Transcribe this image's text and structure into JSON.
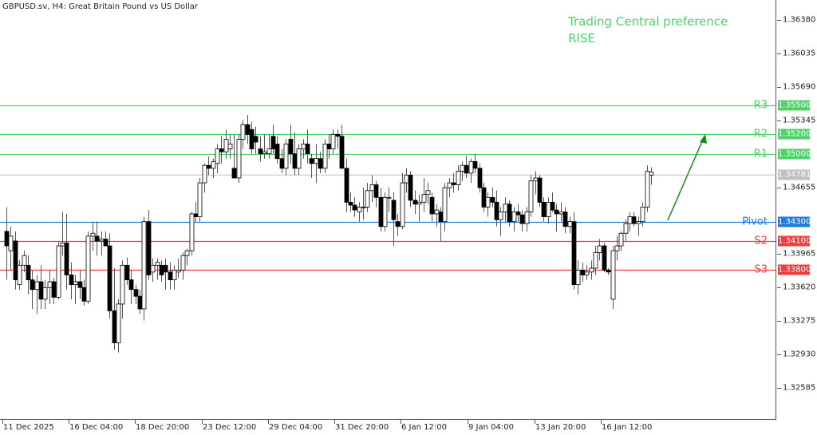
{
  "header": {
    "symbol_title": "GBPUSD.sv, H4:  Great Britain Pound vs US Dollar"
  },
  "annotation": {
    "line1": "Trading Central preference",
    "line2": "RISE",
    "color": "#4cd36a",
    "arrow_color": "#1a8a1a"
  },
  "colors": {
    "resistance": "#4cd36a",
    "pivot": "#1e7be0",
    "support": "#f03c3c",
    "current": "#c0c0c0",
    "candle_outline": "#000000"
  },
  "chart_data": {
    "type": "candlestick",
    "title": "GBPUSD.sv, H4: Great Britain Pound vs US Dollar",
    "xlabel": "",
    "ylabel": "",
    "ylim": [
      1.3225,
      1.3672
    ],
    "grid": false,
    "y_ticks": [
      "1.36380",
      "1.36035",
      "1.35690",
      "1.35345",
      "1.34655",
      "1.33965",
      "1.33620",
      "1.33275",
      "1.32930",
      "1.32585"
    ],
    "x_ticks": [
      "11 Dec 2025",
      "16 Dec 04:00",
      "18 Dec 20:00",
      "23 Dec 12:00",
      "29 Dec 04:00",
      "31 Dec 20:00",
      "6 Jan 12:00",
      "9 Jan 04:00",
      "13 Jan 20:00",
      "16 Jan 12:00"
    ],
    "levels": [
      {
        "name": "R3",
        "value": 1.355,
        "label": "1.35500",
        "type": "resistance"
      },
      {
        "name": "R2",
        "value": 1.352,
        "label": "1.35200",
        "type": "resistance"
      },
      {
        "name": "R1",
        "value": 1.35,
        "label": "1.35000",
        "type": "resistance"
      },
      {
        "name": "Pivot",
        "value": 1.343,
        "label": "1.34300",
        "type": "pivot"
      },
      {
        "name": "S2",
        "value": 1.341,
        "label": "1.34100",
        "type": "support"
      },
      {
        "name": "S3",
        "value": 1.338,
        "label": "1.33800",
        "type": "support"
      }
    ],
    "current_price": {
      "value": 1.34781,
      "label": "1.34781"
    },
    "candles_ohlc_approx": [
      [
        1.342,
        1.3445,
        1.337,
        1.3405
      ],
      [
        1.34,
        1.3425,
        1.338,
        1.3415
      ],
      [
        1.341,
        1.342,
        1.336,
        1.337
      ],
      [
        1.3365,
        1.339,
        1.336,
        1.3385
      ],
      [
        1.3385,
        1.34,
        1.3378,
        1.3395
      ],
      [
        1.3385,
        1.3395,
        1.3355,
        1.337
      ],
      [
        1.337,
        1.338,
        1.334,
        1.336
      ],
      [
        1.336,
        1.3375,
        1.3335,
        1.3368
      ],
      [
        1.3368,
        1.3385,
        1.334,
        1.335
      ],
      [
        1.335,
        1.337,
        1.334,
        1.3362
      ],
      [
        1.3362,
        1.338,
        1.3345,
        1.3368
      ],
      [
        1.3368,
        1.3372,
        1.3345,
        1.3352
      ],
      [
        1.3352,
        1.341,
        1.335,
        1.3405
      ],
      [
        1.3405,
        1.344,
        1.3395,
        1.3408
      ],
      [
        1.3408,
        1.3438,
        1.336,
        1.3375
      ],
      [
        1.3375,
        1.3388,
        1.335,
        1.3365
      ],
      [
        1.3365,
        1.3375,
        1.3345,
        1.3368
      ],
      [
        1.3368,
        1.338,
        1.335,
        1.3362
      ],
      [
        1.3362,
        1.337,
        1.3343,
        1.3348
      ],
      [
        1.3348,
        1.342,
        1.3345,
        1.3415
      ],
      [
        1.3415,
        1.343,
        1.34,
        1.3418
      ],
      [
        1.3415,
        1.343,
        1.3395,
        1.341
      ],
      [
        1.341,
        1.342,
        1.3395,
        1.3412
      ],
      [
        1.3412,
        1.342,
        1.3405,
        1.3405
      ],
      [
        1.3405,
        1.3418,
        1.333,
        1.3338
      ],
      [
        1.3338,
        1.3382,
        1.3298,
        1.3305
      ],
      [
        1.3305,
        1.335,
        1.3295,
        1.3345
      ],
      [
        1.3345,
        1.339,
        1.333,
        1.3385
      ],
      [
        1.3385,
        1.3393,
        1.3365,
        1.337
      ],
      [
        1.337,
        1.338,
        1.3345,
        1.336
      ],
      [
        1.336,
        1.3365,
        1.3345,
        1.3353
      ],
      [
        1.3353,
        1.336,
        1.3335,
        1.334
      ],
      [
        1.334,
        1.3435,
        1.3328,
        1.343
      ],
      [
        1.343,
        1.3442,
        1.337,
        1.3375
      ],
      [
        1.3378,
        1.3392,
        1.3368,
        1.3385
      ],
      [
        1.3385,
        1.3392,
        1.337,
        1.3388
      ],
      [
        1.3385,
        1.339,
        1.3368,
        1.3375
      ],
      [
        1.3385,
        1.3392,
        1.336,
        1.3378
      ],
      [
        1.3378,
        1.3388,
        1.336,
        1.337
      ],
      [
        1.337,
        1.3385,
        1.336,
        1.338
      ],
      [
        1.3378,
        1.3392,
        1.3372,
        1.338
      ],
      [
        1.338,
        1.3398,
        1.337,
        1.3395
      ],
      [
        1.3395,
        1.3402,
        1.3385,
        1.34
      ],
      [
        1.34,
        1.344,
        1.3395,
        1.3438
      ],
      [
        1.3438,
        1.345,
        1.343,
        1.3435
      ],
      [
        1.3435,
        1.3475,
        1.343,
        1.347
      ],
      [
        1.347,
        1.349,
        1.346,
        1.3488
      ],
      [
        1.3488,
        1.3497,
        1.3478,
        1.3485
      ],
      [
        1.3485,
        1.3495,
        1.3475,
        1.3492
      ],
      [
        1.349,
        1.351,
        1.348,
        1.3505
      ],
      [
        1.3505,
        1.3518,
        1.349,
        1.3502
      ],
      [
        1.3502,
        1.3525,
        1.3495,
        1.3515
      ],
      [
        1.3505,
        1.352,
        1.3495,
        1.351
      ],
      [
        1.3485,
        1.352,
        1.348,
        1.3475
      ],
      [
        1.3475,
        1.352,
        1.347,
        1.3515
      ],
      [
        1.3515,
        1.3535,
        1.3505,
        1.353
      ],
      [
        1.353,
        1.354,
        1.351,
        1.352
      ],
      [
        1.3525,
        1.3533,
        1.35,
        1.3505
      ],
      [
        1.3518,
        1.3528,
        1.35,
        1.3512
      ],
      [
        1.3505,
        1.3518,
        1.3492,
        1.35
      ],
      [
        1.35,
        1.352,
        1.3495,
        1.3502
      ],
      [
        1.35,
        1.352,
        1.3495,
        1.3505
      ],
      [
        1.3518,
        1.353,
        1.35,
        1.3505
      ],
      [
        1.351,
        1.3518,
        1.349,
        1.3495
      ],
      [
        1.3495,
        1.3505,
        1.348,
        1.3485
      ],
      [
        1.3485,
        1.3515,
        1.3478,
        1.351
      ],
      [
        1.3515,
        1.353,
        1.349,
        1.35
      ],
      [
        1.35,
        1.3522,
        1.3478,
        1.3485
      ],
      [
        1.3485,
        1.351,
        1.3478,
        1.3505
      ],
      [
        1.3505,
        1.3515,
        1.3495,
        1.351
      ],
      [
        1.351,
        1.3525,
        1.349,
        1.35
      ],
      [
        1.3495,
        1.35,
        1.3475,
        1.349
      ],
      [
        1.349,
        1.351,
        1.347,
        1.3495
      ],
      [
        1.3495,
        1.3502,
        1.348,
        1.3485
      ],
      [
        1.3485,
        1.3515,
        1.348,
        1.351
      ],
      [
        1.351,
        1.352,
        1.3495,
        1.3505
      ],
      [
        1.3505,
        1.3525,
        1.35,
        1.352
      ],
      [
        1.352,
        1.3525,
        1.3505,
        1.3518
      ],
      [
        1.3518,
        1.353,
        1.3495,
        1.3485
      ],
      [
        1.3485,
        1.3495,
        1.344,
        1.345
      ],
      [
        1.345,
        1.346,
        1.344,
        1.3447
      ],
      [
        1.3447,
        1.3455,
        1.3435,
        1.3442
      ],
      [
        1.344,
        1.345,
        1.343,
        1.3445
      ],
      [
        1.3445,
        1.3465,
        1.3432,
        1.3445
      ],
      [
        1.3445,
        1.347,
        1.344,
        1.3462
      ],
      [
        1.3462,
        1.3478,
        1.345,
        1.3468
      ],
      [
        1.3468,
        1.3472,
        1.3445,
        1.3455
      ],
      [
        1.3455,
        1.3465,
        1.342,
        1.3425
      ],
      [
        1.3425,
        1.346,
        1.342,
        1.3455
      ],
      [
        1.3455,
        1.3465,
        1.344,
        1.3455
      ],
      [
        1.3452,
        1.346,
        1.3405,
        1.3432
      ],
      [
        1.343,
        1.3438,
        1.3415,
        1.3425
      ],
      [
        1.3425,
        1.348,
        1.3422,
        1.347
      ],
      [
        1.347,
        1.3485,
        1.346,
        1.3478
      ],
      [
        1.3478,
        1.3482,
        1.3445,
        1.3452
      ],
      [
        1.3452,
        1.3462,
        1.3438,
        1.3448
      ],
      [
        1.3448,
        1.3458,
        1.343,
        1.345
      ],
      [
        1.345,
        1.3475,
        1.344,
        1.3458
      ],
      [
        1.3458,
        1.347,
        1.3448,
        1.3462
      ],
      [
        1.3455,
        1.346,
        1.343,
        1.3438
      ],
      [
        1.3438,
        1.3448,
        1.3425,
        1.3442
      ],
      [
        1.344,
        1.3445,
        1.341,
        1.343
      ],
      [
        1.343,
        1.347,
        1.342,
        1.3465
      ],
      [
        1.3465,
        1.3475,
        1.3455,
        1.347
      ],
      [
        1.347,
        1.348,
        1.346,
        1.3468
      ],
      [
        1.3468,
        1.3488,
        1.3462,
        1.3482
      ],
      [
        1.3482,
        1.3492,
        1.3472,
        1.3488
      ],
      [
        1.3488,
        1.3498,
        1.3475,
        1.348
      ],
      [
        1.348,
        1.3495,
        1.347,
        1.3492
      ],
      [
        1.3492,
        1.35,
        1.348,
        1.3485
      ],
      [
        1.3485,
        1.349,
        1.346,
        1.3465
      ],
      [
        1.3465,
        1.347,
        1.344,
        1.3445
      ],
      [
        1.3445,
        1.346,
        1.3435,
        1.3455
      ],
      [
        1.3455,
        1.3465,
        1.3445,
        1.345
      ],
      [
        1.345,
        1.3462,
        1.3425,
        1.3432
      ],
      [
        1.3432,
        1.3445,
        1.3415,
        1.344
      ],
      [
        1.344,
        1.3455,
        1.343,
        1.3448
      ],
      [
        1.3448,
        1.3452,
        1.3425,
        1.343
      ],
      [
        1.343,
        1.3445,
        1.342,
        1.344
      ],
      [
        1.344,
        1.3448,
        1.343,
        1.3437
      ],
      [
        1.3437,
        1.3442,
        1.342,
        1.3428
      ],
      [
        1.3428,
        1.3445,
        1.342,
        1.344
      ],
      [
        1.344,
        1.3478,
        1.3435,
        1.3472
      ],
      [
        1.3472,
        1.3482,
        1.3458,
        1.3475
      ],
      [
        1.3475,
        1.3478,
        1.3445,
        1.345
      ],
      [
        1.345,
        1.3455,
        1.343,
        1.3435
      ],
      [
        1.3435,
        1.3455,
        1.3428,
        1.345
      ],
      [
        1.345,
        1.346,
        1.344,
        1.3442
      ],
      [
        1.3442,
        1.3448,
        1.342,
        1.3438
      ],
      [
        1.3438,
        1.345,
        1.343,
        1.344
      ],
      [
        1.344,
        1.3445,
        1.3418,
        1.3425
      ],
      [
        1.3425,
        1.3435,
        1.3418,
        1.343
      ],
      [
        1.343,
        1.344,
        1.336,
        1.3365
      ],
      [
        1.3365,
        1.339,
        1.3355,
        1.338
      ],
      [
        1.338,
        1.3388,
        1.3368,
        1.3375
      ],
      [
        1.3375,
        1.3385,
        1.337,
        1.3378
      ],
      [
        1.3378,
        1.339,
        1.337,
        1.3382
      ],
      [
        1.3382,
        1.3405,
        1.3375,
        1.3398
      ],
      [
        1.3398,
        1.3412,
        1.339,
        1.3405
      ],
      [
        1.3405,
        1.3408,
        1.3378,
        1.338
      ],
      [
        1.338,
        1.3382,
        1.3375,
        1.3378
      ],
      [
        1.335,
        1.3405,
        1.334,
        1.34
      ],
      [
        1.34,
        1.3415,
        1.339,
        1.3405
      ],
      [
        1.3405,
        1.342,
        1.34,
        1.3418
      ],
      [
        1.3418,
        1.3432,
        1.341,
        1.3428
      ],
      [
        1.3428,
        1.344,
        1.342,
        1.3435
      ],
      [
        1.3435,
        1.344,
        1.3425,
        1.3428
      ],
      [
        1.3428,
        1.3435,
        1.3415,
        1.343
      ],
      [
        1.343,
        1.345,
        1.3425,
        1.3445
      ],
      [
        1.3445,
        1.3488,
        1.344,
        1.3482
      ],
      [
        1.3478,
        1.3486,
        1.3468,
        1.3481
      ]
    ]
  }
}
